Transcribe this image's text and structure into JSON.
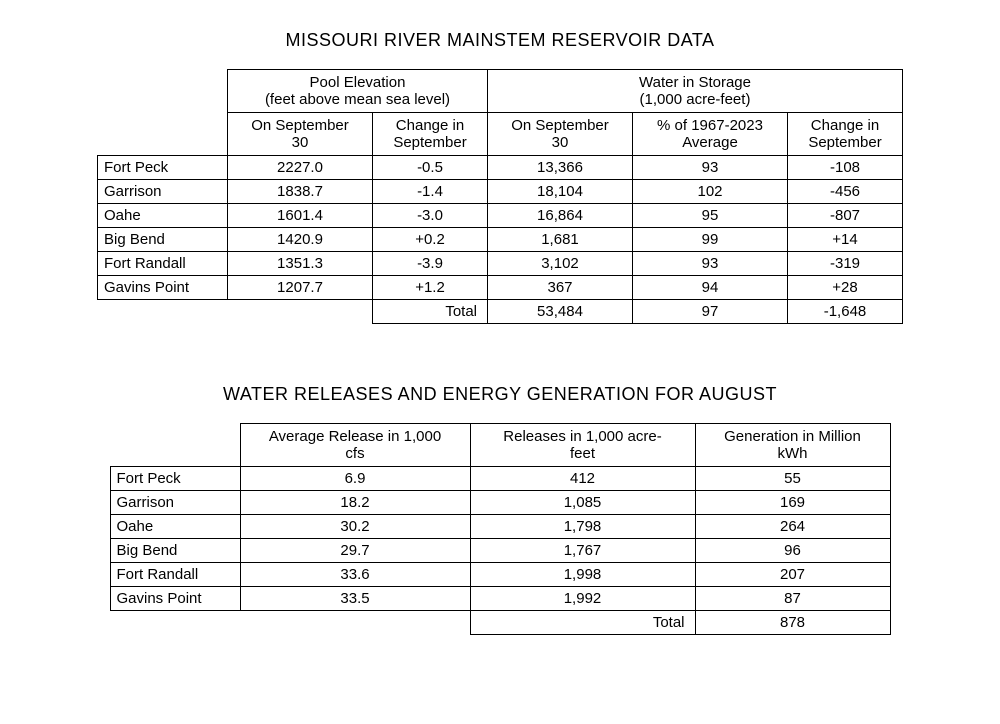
{
  "table1": {
    "title": "MISSOURI RIVER MAINSTEM RESERVOIR DATA",
    "group1_line1": "Pool Elevation",
    "group1_line2": "(feet above mean sea level)",
    "group2_line1": "Water in Storage",
    "group2_line2": "(1,000 acre-feet)",
    "col1_line1": "On September",
    "col1_line2": "30",
    "col2_line1": "Change in",
    "col2_line2": "September",
    "col3_line1": "On September",
    "col3_line2": "30",
    "col4_line1": "% of 1967-2023",
    "col4_line2": "Average",
    "col5_line1": "Change in",
    "col5_line2": "September",
    "rows": [
      {
        "name": "Fort Peck",
        "c1": "2227.0",
        "c2": "-0.5",
        "c3": "13,366",
        "c4": "93",
        "c5": "-108"
      },
      {
        "name": "Garrison",
        "c1": "1838.7",
        "c2": "-1.4",
        "c3": "18,104",
        "c4": "102",
        "c5": "-456"
      },
      {
        "name": "Oahe",
        "c1": "1601.4",
        "c2": "-3.0",
        "c3": "16,864",
        "c4": "95",
        "c5": "-807"
      },
      {
        "name": "Big Bend",
        "c1": "1420.9",
        "c2": "+0.2",
        "c3": "1,681",
        "c4": "99",
        "c5": "+14"
      },
      {
        "name": "Fort Randall",
        "c1": "1351.3",
        "c2": "-3.9",
        "c3": "3,102",
        "c4": "93",
        "c5": "-319"
      },
      {
        "name": "Gavins Point",
        "c1": "1207.7",
        "c2": "+1.2",
        "c3": "367",
        "c4": "94",
        "c5": "+28"
      }
    ],
    "total_label": "Total",
    "total_c3": "53,484",
    "total_c4": "97",
    "total_c5": "-1,648"
  },
  "table2": {
    "title": "WATER RELEASES AND ENERGY GENERATION FOR AUGUST",
    "col1_line1": "Average Release in 1,000",
    "col1_line2": "cfs",
    "col2_line1": "Releases in 1,000 acre-",
    "col2_line2": "feet",
    "col3_line1": "Generation in Million",
    "col3_line2": "kWh",
    "rows": [
      {
        "name": "Fort Peck",
        "c1": "6.9",
        "c2": "412",
        "c3": "55"
      },
      {
        "name": "Garrison",
        "c1": "18.2",
        "c2": "1,085",
        "c3": "169"
      },
      {
        "name": "Oahe",
        "c1": "30.2",
        "c2": "1,798",
        "c3": "264"
      },
      {
        "name": "Big Bend",
        "c1": "29.7",
        "c2": "1,767",
        "c3": "96"
      },
      {
        "name": "Fort Randall",
        "c1": "33.6",
        "c2": "1,998",
        "c3": "207"
      },
      {
        "name": "Gavins Point",
        "c1": "33.5",
        "c2": "1,992",
        "c3": "87"
      }
    ],
    "total_label": "Total",
    "total_c3": "878"
  }
}
